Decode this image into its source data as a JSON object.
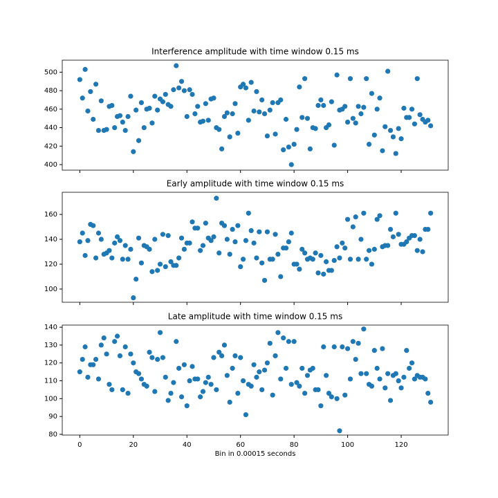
{
  "chart_data": [
    {
      "type": "scatter",
      "title": "Interference amplitude with time window 0.15 ms",
      "color": "#1f77b4",
      "x": [
        0,
        1,
        2,
        3,
        4,
        5,
        6,
        7,
        8,
        9,
        10,
        11,
        12,
        13,
        14,
        15,
        16,
        17,
        18,
        19,
        20,
        21,
        22,
        23,
        24,
        25,
        26,
        27,
        28,
        29,
        30,
        31,
        32,
        33,
        34,
        35,
        36,
        37,
        38,
        39,
        40,
        41,
        42,
        43,
        44,
        45,
        46,
        47,
        48,
        49,
        50,
        51,
        52,
        53,
        54,
        55,
        56,
        57,
        58,
        59,
        60,
        61,
        62,
        63,
        64,
        65,
        66,
        67,
        68,
        69,
        70,
        71,
        72,
        73,
        74,
        75,
        76,
        77,
        78,
        79,
        80,
        81,
        82,
        83,
        84,
        85,
        86,
        87,
        88,
        89,
        90,
        91,
        92,
        93,
        94,
        95,
        96,
        97,
        98,
        99,
        100,
        101,
        102,
        103,
        104,
        105,
        106,
        107,
        108,
        109,
        110,
        111,
        112,
        113,
        114,
        115,
        116,
        117,
        118,
        119,
        120,
        121,
        122,
        123,
        124,
        125,
        126,
        127,
        128,
        129,
        130,
        131
      ],
      "values": [
        492,
        472,
        503,
        458,
        479,
        449,
        487,
        437,
        469,
        437,
        438,
        463,
        464,
        440,
        452,
        453,
        446,
        437,
        452,
        474,
        414,
        459,
        426,
        467,
        440,
        460,
        461,
        445,
        474,
        459,
        471,
        468,
        476,
        465,
        463,
        481,
        507,
        483,
        490,
        480,
        452,
        481,
        476,
        455,
        463,
        446,
        447,
        466,
        448,
        471,
        472,
        440,
        438,
        417,
        452,
        456,
        430,
        455,
        466,
        434,
        484,
        487,
        483,
        448,
        489,
        458,
        479,
        457,
        470,
        455,
        431,
        459,
        467,
        433,
        467,
        470,
        416,
        449,
        419,
        400,
        422,
        438,
        484,
        451,
        493,
        450,
        417,
        440,
        439,
        464,
        470,
        464,
        440,
        443,
        468,
        421,
        497,
        459,
        460,
        463,
        446,
        493,
        450,
        445,
        463,
        455,
        462,
        493,
        422,
        477,
        432,
        460,
        472,
        415,
        441,
        501,
        437,
        430,
        412,
        439,
        428,
        461,
        451,
        451,
        460,
        444,
        493,
        454,
        449,
        446,
        448,
        442
      ],
      "xlim": [
        -6.55,
        137.55
      ],
      "xticks": [
        0,
        20,
        40,
        60,
        80,
        100,
        120
      ],
      "ylim": [
        394,
        513
      ],
      "yticks": [
        400,
        420,
        440,
        460,
        480,
        500
      ]
    },
    {
      "type": "scatter",
      "title": "Early amplitude with time window 0.15 ms",
      "color": "#1f77b4",
      "x": [
        0,
        1,
        2,
        3,
        4,
        5,
        6,
        7,
        8,
        9,
        10,
        11,
        12,
        13,
        14,
        15,
        16,
        17,
        18,
        19,
        20,
        21,
        22,
        23,
        24,
        25,
        26,
        27,
        28,
        29,
        30,
        31,
        32,
        33,
        34,
        35,
        36,
        37,
        38,
        39,
        40,
        41,
        42,
        43,
        44,
        45,
        46,
        47,
        48,
        49,
        50,
        51,
        52,
        53,
        54,
        55,
        56,
        57,
        58,
        59,
        60,
        61,
        62,
        63,
        64,
        65,
        66,
        67,
        68,
        69,
        70,
        71,
        72,
        73,
        74,
        75,
        76,
        77,
        78,
        79,
        80,
        81,
        82,
        83,
        84,
        85,
        86,
        87,
        88,
        89,
        90,
        91,
        92,
        93,
        94,
        95,
        96,
        97,
        98,
        99,
        100,
        101,
        102,
        103,
        104,
        105,
        106,
        107,
        108,
        109,
        110,
        111,
        112,
        113,
        114,
        115,
        116,
        117,
        118,
        119,
        120,
        121,
        122,
        123,
        124,
        125,
        126,
        127,
        128,
        129,
        130,
        131
      ],
      "values": [
        138,
        145,
        127,
        139,
        152,
        151,
        125,
        145,
        140,
        128,
        129,
        131,
        125,
        137,
        142,
        139,
        124,
        135,
        124,
        132,
        93,
        108,
        141,
        121,
        135,
        134,
        132,
        114,
        140,
        115,
        120,
        144,
        118,
        143,
        122,
        119,
        119,
        125,
        141,
        132,
        137,
        137,
        154,
        149,
        149,
        131,
        135,
        153,
        141,
        139,
        142,
        173,
        129,
        153,
        151,
        140,
        128,
        148,
        138,
        151,
        118,
        124,
        139,
        161,
        147,
        137,
        125,
        146,
        121,
        107,
        146,
        124,
        124,
        144,
        128,
        110,
        133,
        133,
        138,
        145,
        120,
        120,
        116,
        132,
        129,
        124,
        125,
        124,
        129,
        113,
        127,
        112,
        122,
        115,
        115,
        123,
        134,
        125,
        137,
        133,
        156,
        124,
        150,
        158,
        124,
        140,
        161,
        124,
        131,
        120,
        132,
        156,
        159,
        134,
        135,
        135,
        148,
        142,
        161,
        144,
        136,
        136,
        138,
        141,
        143,
        143,
        131,
        140,
        130,
        148,
        148,
        161
      ],
      "xlim": [
        -6.55,
        137.55
      ],
      "xticks": [
        0,
        20,
        40,
        60,
        80,
        100,
        120
      ],
      "ylim": [
        89.4,
        177.8
      ],
      "yticks": [
        100,
        120,
        140,
        160
      ]
    },
    {
      "type": "scatter",
      "title": "Late amplitude with time window 0.15 ms",
      "xlabel": "Bin in 0.00015 seconds",
      "color": "#1f77b4",
      "x": [
        0,
        1,
        2,
        3,
        4,
        5,
        6,
        7,
        8,
        9,
        10,
        11,
        12,
        13,
        14,
        15,
        16,
        17,
        18,
        19,
        20,
        21,
        22,
        23,
        24,
        25,
        26,
        27,
        28,
        29,
        30,
        31,
        32,
        33,
        34,
        35,
        36,
        37,
        38,
        39,
        40,
        41,
        42,
        43,
        44,
        45,
        46,
        47,
        48,
        49,
        50,
        51,
        52,
        53,
        54,
        55,
        56,
        57,
        58,
        59,
        60,
        61,
        62,
        63,
        64,
        65,
        66,
        67,
        68,
        69,
        70,
        71,
        72,
        73,
        74,
        75,
        76,
        77,
        78,
        79,
        80,
        81,
        82,
        83,
        84,
        85,
        86,
        87,
        88,
        89,
        90,
        91,
        92,
        93,
        94,
        95,
        96,
        97,
        98,
        99,
        100,
        101,
        102,
        103,
        104,
        105,
        106,
        107,
        108,
        109,
        110,
        111,
        112,
        113,
        114,
        115,
        116,
        117,
        118,
        119,
        120,
        121,
        122,
        123,
        124,
        125,
        126,
        127,
        128,
        129,
        130,
        131
      ],
      "values": [
        115,
        122,
        129,
        112,
        119,
        119,
        122,
        111,
        130,
        134,
        125,
        108,
        105,
        132,
        135,
        124,
        105,
        129,
        103,
        125,
        120,
        115,
        114,
        111,
        108,
        107,
        126,
        123,
        104,
        122,
        137,
        123,
        112,
        99,
        103,
        109,
        132,
        117,
        101,
        119,
        96,
        110,
        118,
        111,
        111,
        101,
        104,
        109,
        112,
        108,
        123,
        105,
        126,
        124,
        130,
        113,
        98,
        117,
        124,
        103,
        123,
        110,
        91,
        108,
        107,
        119,
        112,
        115,
        105,
        116,
        120,
        131,
        102,
        124,
        137,
        111,
        134,
        117,
        132,
        108,
        132,
        109,
        107,
        117,
        103,
        113,
        116,
        117,
        105,
        105,
        96,
        129,
        113,
        103,
        101,
        129,
        100,
        82,
        129,
        102,
        128,
        111,
        132,
        122,
        131,
        114,
        139,
        114,
        108,
        107,
        127,
        117,
        111,
        128,
        106,
        114,
        99,
        113,
        114,
        110,
        106,
        112,
        127,
        117,
        120,
        111,
        113,
        112,
        112,
        111,
        103,
        98
      ],
      "xlim": [
        -6.55,
        137.55
      ],
      "xticks": [
        0,
        20,
        40,
        60,
        80,
        100,
        120
      ],
      "ylim": [
        79.6,
        141.2
      ],
      "yticks": [
        80,
        90,
        100,
        110,
        120,
        130,
        140
      ]
    }
  ]
}
